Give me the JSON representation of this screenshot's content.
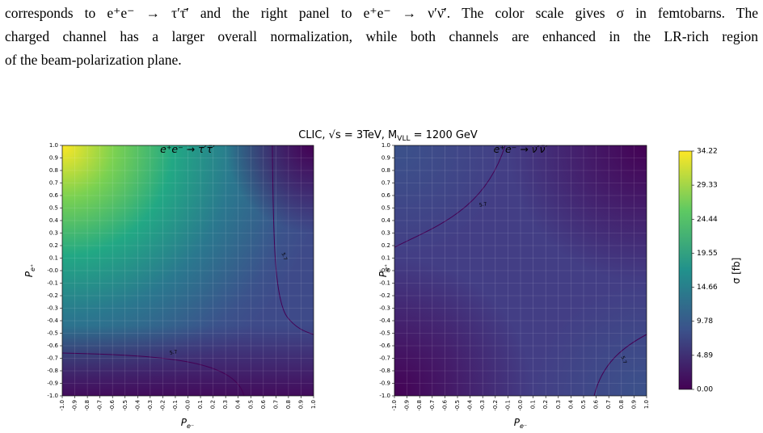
{
  "text": {
    "lines": [
      "corresponds to e⁺e⁻ → τ′τ̄′ and the right panel to e⁺e⁻ → ν′ν̄′. The color scale gives σ in femtobarns. The",
      "charged channel has a larger overall normalization, while both channels are enhanced in the LR-rich region",
      "of the beam-polarization plane."
    ]
  },
  "figure": {
    "suptitle": {
      "prefix": "CLIC, √s = 3TeV, M",
      "subscript": "VLL",
      "suffix": " = 1200 GeV"
    },
    "panels": [
      {
        "title": "e⁺e⁻ → τ′τ̄′",
        "contour_labels": [
          "5.7",
          "5.7"
        ]
      },
      {
        "title": "e⁺e⁻ → ν′ν̄′",
        "contour_labels": [
          "5.7",
          "5.7"
        ]
      }
    ],
    "xlabel": {
      "symbol": "P",
      "subscript": "e⁻"
    },
    "ylabel": {
      "symbol": "P",
      "subscript": "e⁺"
    },
    "ticks": [
      "-1.0",
      "-0.9",
      "-0.8",
      "-0.7",
      "-0.6",
      "-0.5",
      "-0.4",
      "-0.3",
      "-0.2",
      "-0.1",
      "-0.0",
      "0.1",
      "0.2",
      "0.3",
      "0.4",
      "0.5",
      "0.6",
      "0.7",
      "0.8",
      "0.9",
      "1.0"
    ],
    "colorbar": {
      "ticks": [
        "0.00",
        "4.89",
        "9.78",
        "14.66",
        "19.55",
        "24.44",
        "29.33",
        "34.22"
      ],
      "label": "σ [fb]"
    }
  }
}
